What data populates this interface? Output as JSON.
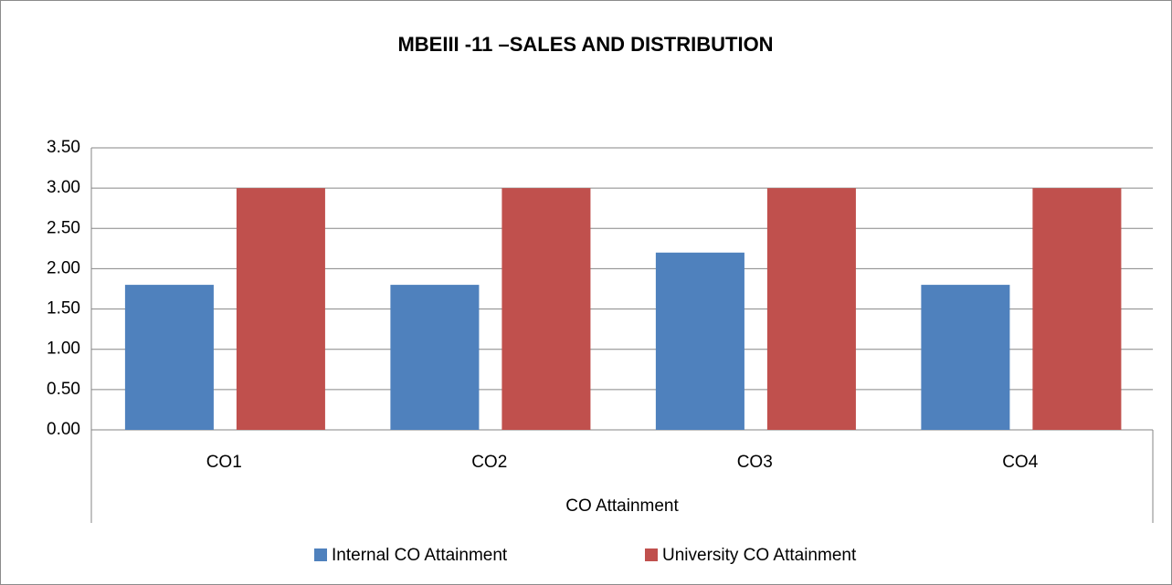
{
  "chart_data": {
    "type": "bar",
    "title": "MBEIII -11 –SALES AND DISTRIBUTION",
    "x_label": "CO Attainment",
    "categories": [
      "CO1",
      "CO2",
      "CO3",
      "CO4"
    ],
    "series": [
      {
        "name": "Internal CO Attainment",
        "color": "#4f81bd",
        "values": [
          1.8,
          1.8,
          2.2,
          1.8
        ]
      },
      {
        "name": "University CO Attainment",
        "color": "#c0504d",
        "values": [
          3,
          3,
          3,
          3
        ]
      }
    ],
    "ylim": [
      0,
      3.5
    ],
    "yticks": [
      {
        "value": 0,
        "label": "0.00"
      },
      {
        "value": 0.5,
        "label": "0.50"
      },
      {
        "value": 1,
        "label": "1.00"
      },
      {
        "value": 1.5,
        "label": "1.50"
      },
      {
        "value": 2,
        "label": "2.00"
      },
      {
        "value": 2.5,
        "label": "2.50"
      },
      {
        "value": 3,
        "label": "3.00"
      },
      {
        "value": 3.5,
        "label": "3.50"
      }
    ],
    "grid": true,
    "legend": "bottom"
  }
}
